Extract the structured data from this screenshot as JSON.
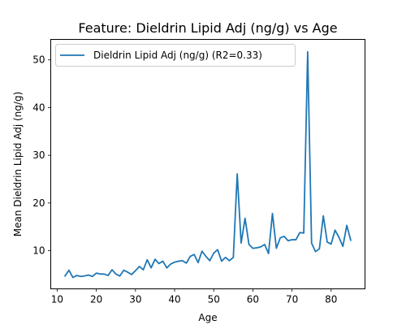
{
  "chart_data": {
    "type": "line",
    "title": "Feature: Dieldrin Lipid Adj (ng/g) vs Age",
    "xlabel": "Age",
    "ylabel": "Mean Dieldrin Lipid Adj (ng/g)",
    "xlim": [
      8.35,
      88.65
    ],
    "ylim": [
      2.0,
      54.3
    ],
    "xticks": [
      10,
      20,
      30,
      40,
      50,
      60,
      70,
      80
    ],
    "yticks": [
      10,
      20,
      30,
      40,
      50
    ],
    "grid": false,
    "legend_position": "top-left",
    "series": [
      {
        "name": "Dieldrin Lipid Adj (ng/g) (R2=0.33)",
        "color": "#1f77b4",
        "x": [
          12,
          13,
          14,
          15,
          16,
          17,
          18,
          19,
          20,
          21,
          22,
          23,
          24,
          25,
          26,
          27,
          28,
          29,
          30,
          31,
          32,
          33,
          34,
          35,
          36,
          37,
          38,
          39,
          40,
          41,
          42,
          43,
          44,
          45,
          46,
          47,
          48,
          49,
          50,
          51,
          52,
          53,
          54,
          55,
          56,
          57,
          58,
          59,
          60,
          61,
          62,
          63,
          64,
          65,
          66,
          67,
          68,
          69,
          70,
          71,
          72,
          73,
          74,
          75,
          76,
          77,
          78,
          79,
          80,
          81,
          82,
          83,
          84,
          85
        ],
        "y": [
          4.7,
          5.9,
          4.4,
          4.8,
          4.6,
          4.7,
          4.9,
          4.6,
          5.3,
          5.1,
          5.1,
          4.8,
          6.0,
          5.1,
          4.7,
          5.9,
          5.5,
          5.0,
          5.8,
          6.7,
          6.0,
          8.1,
          6.4,
          8.2,
          7.3,
          7.8,
          6.4,
          7.2,
          7.6,
          7.8,
          7.9,
          7.4,
          8.8,
          9.2,
          7.5,
          9.9,
          8.8,
          7.9,
          9.5,
          10.2,
          7.8,
          8.6,
          7.9,
          8.6,
          26.1,
          11.6,
          16.8,
          11.3,
          10.5,
          10.6,
          10.8,
          11.3,
          9.4,
          17.8,
          10.5,
          12.7,
          13.0,
          12.1,
          12.3,
          12.3,
          13.8,
          13.7,
          51.7,
          11.6,
          9.8,
          10.4,
          17.3,
          11.8,
          11.4,
          14.3,
          12.8,
          10.9,
          15.3,
          12.2
        ]
      }
    ]
  }
}
